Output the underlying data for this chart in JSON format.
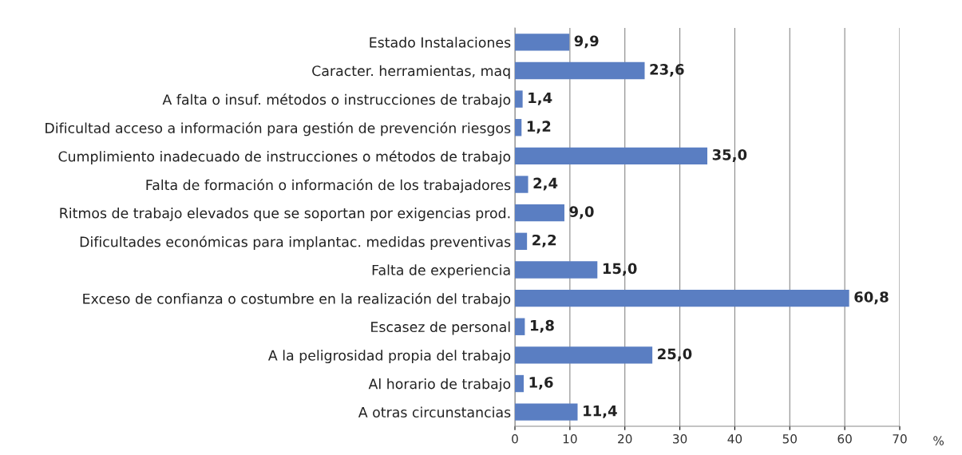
{
  "chart_data": {
    "type": "bar",
    "orientation": "horizontal",
    "xlabel": "%",
    "categories": [
      "Estado Instalaciones",
      "Caracter. herramientas, maq",
      "A falta o insuf. métodos o instrucciones de trabajo",
      "Dificultad acceso a información para gestión de prevención riesgos",
      "Cumplimiento inadecuado de instrucciones o métodos de trabajo",
      "Falta de formación o información de los trabajadores",
      "Ritmos de trabajo elevados que se soportan por exigencias prod.",
      "Dificultades económicas para implantac. medidas preventivas",
      "Falta de experiencia",
      "Exceso de confianza o costumbre en la realización del trabajo",
      "Escasez de personal",
      "A la peligrosidad propia del trabajo",
      "Al horario de trabajo",
      "A otras circunstancias"
    ],
    "values": [
      9.9,
      23.6,
      1.4,
      1.2,
      35.0,
      2.4,
      9.0,
      2.2,
      15.0,
      60.8,
      1.8,
      25.0,
      1.6,
      11.4
    ],
    "value_labels": [
      "9,9",
      "23,6",
      "1,4",
      "1,2",
      "35,0",
      "2,4",
      "9,0",
      "2,2",
      "15,0",
      "60,8",
      "1,8",
      "25,0",
      "1,6",
      "11,4"
    ],
    "color": "#5a7ec2",
    "xlim": [
      0,
      70
    ],
    "xticks": [
      0,
      10,
      20,
      30,
      40,
      50,
      60,
      70
    ],
    "grid": "x"
  }
}
